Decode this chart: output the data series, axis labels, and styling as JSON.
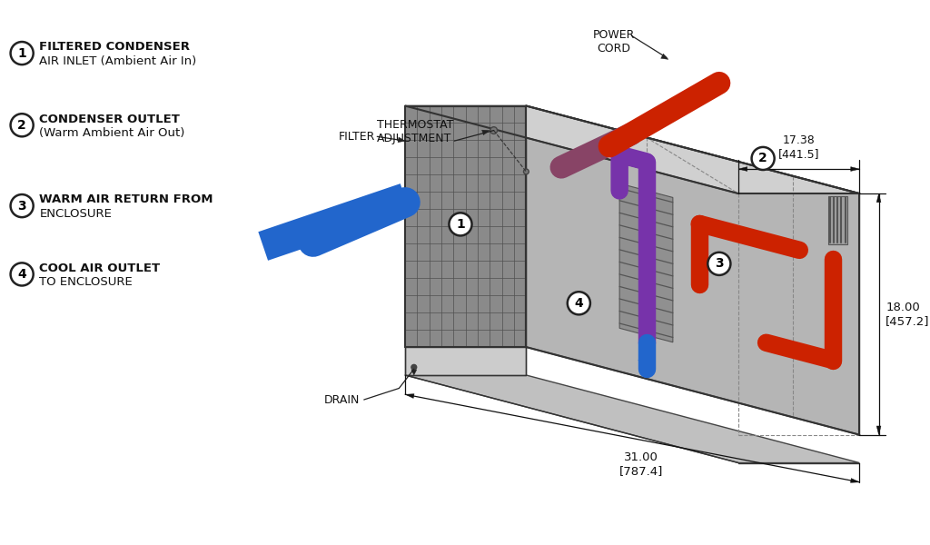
{
  "bg_color": "#ffffff",
  "box_right_face": "#b5b5b5",
  "box_top_face": "#d0d0d0",
  "box_front_face": "#8a8a8a",
  "box_bottom_strip": "#c8c8c8",
  "red_color": "#cc2200",
  "blue_color": "#2266cc",
  "purple_color": "#7733aa",
  "dim_color": "#111111",
  "line_color": "#333333",
  "legend": [
    {
      "num": "1",
      "line1": "FILTERED CONDENSER",
      "line2": "AIR INLET (Ambient Air In)"
    },
    {
      "num": "2",
      "line1": "CONDENSER OUTLET",
      "line2": "(Warm Ambient Air Out)"
    },
    {
      "num": "3",
      "line1": "WARM AIR RETURN FROM",
      "line2": "ENCLOSURE"
    },
    {
      "num": "4",
      "line1": "COOL AIR OUTLET",
      "line2": "TO ENCLOSURE"
    }
  ],
  "dim_width": "17.38\n[441.5]",
  "dim_height": "18.00\n[457.2]",
  "dim_depth": "31.00\n[787.4]",
  "label_power_cord": "POWER\nCORD",
  "label_thermostat": "THERMOSTAT\nADJUSTMENT",
  "label_filter": "FILTER",
  "label_drain": "DRAIN"
}
